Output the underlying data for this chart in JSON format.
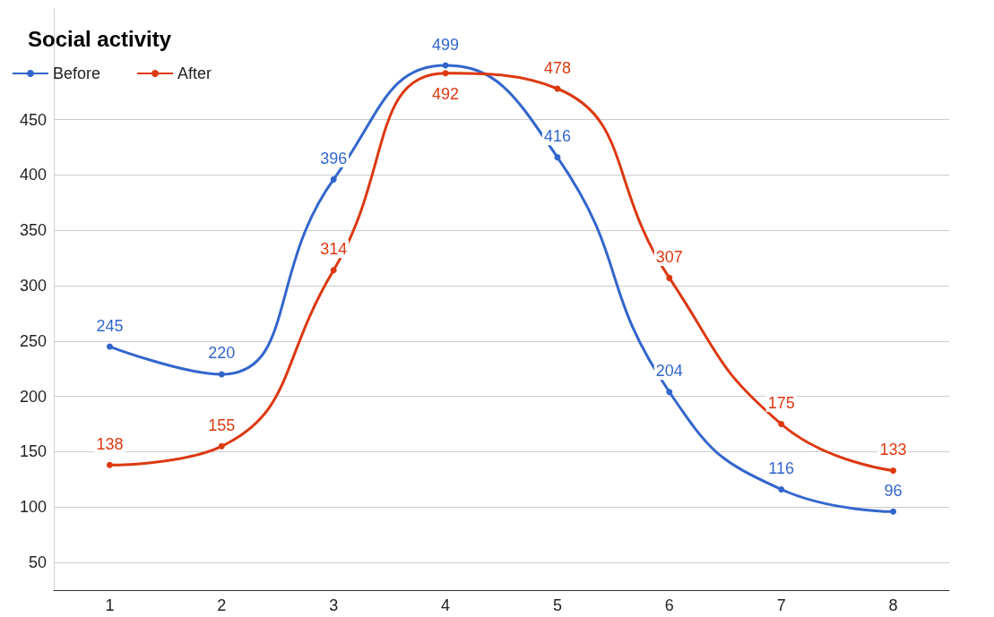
{
  "chart_data": {
    "type": "line",
    "title": "Social activity",
    "categories": [
      "1",
      "2",
      "3",
      "4",
      "5",
      "6",
      "7",
      "8"
    ],
    "series": [
      {
        "name": "Before",
        "color": "#3366cc",
        "values": [
          245,
          220,
          396,
          499,
          416,
          204,
          116,
          96
        ]
      },
      {
        "name": "After",
        "color": "#dc3912",
        "values": [
          138,
          155,
          314,
          492,
          478,
          307,
          175,
          133
        ]
      }
    ],
    "ylim": [
      25,
      550
    ],
    "yticks": [
      50,
      100,
      150,
      200,
      250,
      300,
      350,
      400,
      450
    ],
    "grid": "y",
    "legend": "top left",
    "marker": "circle",
    "data_labels": true
  }
}
